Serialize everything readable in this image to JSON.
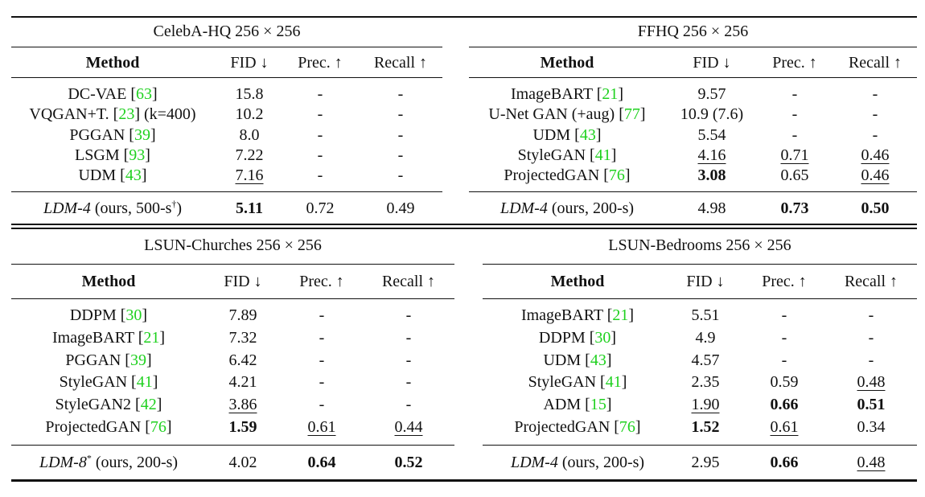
{
  "headers": {
    "method": "Method",
    "fid": "FID ↓",
    "prec": "Prec. ↑",
    "recall": "Recall ↑"
  },
  "tables": [
    {
      "title": "CelebA-HQ 256 × 256",
      "rows": [
        {
          "name": "DC-VAE",
          "ref": "63",
          "extra": "",
          "fid": {
            "v": "15.8"
          },
          "prec": {
            "v": "-"
          },
          "recall": {
            "v": "-"
          }
        },
        {
          "name": "VQGAN+T.",
          "ref": "23",
          "extra": "(k=400)",
          "fid": {
            "v": "10.2"
          },
          "prec": {
            "v": "-"
          },
          "recall": {
            "v": "-"
          }
        },
        {
          "name": "PGGAN",
          "ref": "39",
          "extra": "",
          "fid": {
            "v": "8.0"
          },
          "prec": {
            "v": "-"
          },
          "recall": {
            "v": "-"
          }
        },
        {
          "name": "LSGM",
          "ref": "93",
          "extra": "",
          "fid": {
            "v": "7.22"
          },
          "prec": {
            "v": "-"
          },
          "recall": {
            "v": "-"
          }
        },
        {
          "name": "UDM",
          "ref": "43",
          "extra": "",
          "fid": {
            "v": "7.16",
            "u": true
          },
          "prec": {
            "v": "-"
          },
          "recall": {
            "v": "-"
          }
        }
      ],
      "ours": {
        "model": "LDM-4",
        "rest": " (ours, 500-s",
        "sup": "†",
        "close": ")",
        "fid": {
          "v": "5.11",
          "b": true
        },
        "prec": {
          "v": "0.72"
        },
        "recall": {
          "v": "0.49"
        }
      }
    },
    {
      "title": "FFHQ 256 × 256",
      "rows": [
        {
          "name": "ImageBART",
          "ref": "21",
          "extra": "",
          "fid": {
            "v": "9.57"
          },
          "prec": {
            "v": "-"
          },
          "recall": {
            "v": "-"
          }
        },
        {
          "name": "U-Net GAN (+aug)",
          "ref": "77",
          "extra": "",
          "fid": {
            "v": "10.9 (7.6)"
          },
          "prec": {
            "v": "-"
          },
          "recall": {
            "v": "-"
          }
        },
        {
          "name": "UDM",
          "ref": "43",
          "extra": "",
          "fid": {
            "v": "5.54"
          },
          "prec": {
            "v": "-"
          },
          "recall": {
            "v": "-"
          }
        },
        {
          "name": "StyleGAN",
          "ref": "41",
          "extra": "",
          "fid": {
            "v": "4.16",
            "u": true
          },
          "prec": {
            "v": "0.71",
            "u": true
          },
          "recall": {
            "v": "0.46",
            "u": true
          }
        },
        {
          "name": "ProjectedGAN",
          "ref": "76",
          "extra": "",
          "fid": {
            "v": "3.08",
            "b": true
          },
          "prec": {
            "v": "0.65"
          },
          "recall": {
            "v": "0.46",
            "u": true
          }
        }
      ],
      "ours": {
        "model": "LDM-4",
        "rest": " (ours, 200-s)",
        "sup": "",
        "close": "",
        "fid": {
          "v": "4.98"
        },
        "prec": {
          "v": "0.73",
          "b": true
        },
        "recall": {
          "v": "0.50",
          "b": true
        }
      }
    },
    {
      "title": "LSUN-Churches 256 × 256",
      "rows": [
        {
          "name": "DDPM",
          "ref": "30",
          "extra": "",
          "fid": {
            "v": "7.89"
          },
          "prec": {
            "v": "-"
          },
          "recall": {
            "v": "-"
          }
        },
        {
          "name": "ImageBART",
          "ref": "21",
          "extra": "",
          "fid": {
            "v": "7.32"
          },
          "prec": {
            "v": "-"
          },
          "recall": {
            "v": "-"
          }
        },
        {
          "name": "PGGAN",
          "ref": "39",
          "extra": "",
          "fid": {
            "v": "6.42"
          },
          "prec": {
            "v": "-"
          },
          "recall": {
            "v": "-"
          }
        },
        {
          "name": "StyleGAN",
          "ref": "41",
          "extra": "",
          "fid": {
            "v": "4.21"
          },
          "prec": {
            "v": "-"
          },
          "recall": {
            "v": "-"
          }
        },
        {
          "name": "StyleGAN2",
          "ref": "42",
          "extra": "",
          "fid": {
            "v": "3.86",
            "u": true
          },
          "prec": {
            "v": "-"
          },
          "recall": {
            "v": "-"
          }
        },
        {
          "name": "ProjectedGAN",
          "ref": "76",
          "extra": "",
          "fid": {
            "v": "1.59",
            "b": true
          },
          "prec": {
            "v": "0.61",
            "u": true
          },
          "recall": {
            "v": "0.44",
            "u": true
          }
        }
      ],
      "ours": {
        "model": "LDM-8",
        "rest": " (ours, 200-s)",
        "sup": "*",
        "close": "",
        "fid": {
          "v": "4.02"
        },
        "prec": {
          "v": "0.64",
          "b": true
        },
        "recall": {
          "v": "0.52",
          "b": true
        }
      }
    },
    {
      "title": "LSUN-Bedrooms 256 × 256",
      "rows": [
        {
          "name": "ImageBART",
          "ref": "21",
          "extra": "",
          "fid": {
            "v": "5.51"
          },
          "prec": {
            "v": "-"
          },
          "recall": {
            "v": "-"
          }
        },
        {
          "name": "DDPM",
          "ref": "30",
          "extra": "",
          "fid": {
            "v": "4.9"
          },
          "prec": {
            "v": "-"
          },
          "recall": {
            "v": "-"
          }
        },
        {
          "name": "UDM",
          "ref": "43",
          "extra": "",
          "fid": {
            "v": "4.57"
          },
          "prec": {
            "v": "-"
          },
          "recall": {
            "v": "-"
          }
        },
        {
          "name": "StyleGAN",
          "ref": "41",
          "extra": "",
          "fid": {
            "v": "2.35"
          },
          "prec": {
            "v": "0.59"
          },
          "recall": {
            "v": "0.48",
            "u": true
          }
        },
        {
          "name": "ADM",
          "ref": "15",
          "extra": "",
          "fid": {
            "v": "1.90",
            "u": true
          },
          "prec": {
            "v": "0.66",
            "b": true
          },
          "recall": {
            "v": "0.51",
            "b": true
          }
        },
        {
          "name": "ProjectedGAN",
          "ref": "76",
          "extra": "",
          "fid": {
            "v": "1.52",
            "b": true
          },
          "prec": {
            "v": "0.61",
            "u": true
          },
          "recall": {
            "v": "0.34"
          }
        }
      ],
      "ours": {
        "model": "LDM-4",
        "rest": " (ours, 200-s)",
        "sup": "",
        "close": "",
        "fid": {
          "v": "2.95"
        },
        "prec": {
          "v": "0.66",
          "b": true
        },
        "recall": {
          "v": "0.48",
          "u": true
        }
      }
    }
  ]
}
